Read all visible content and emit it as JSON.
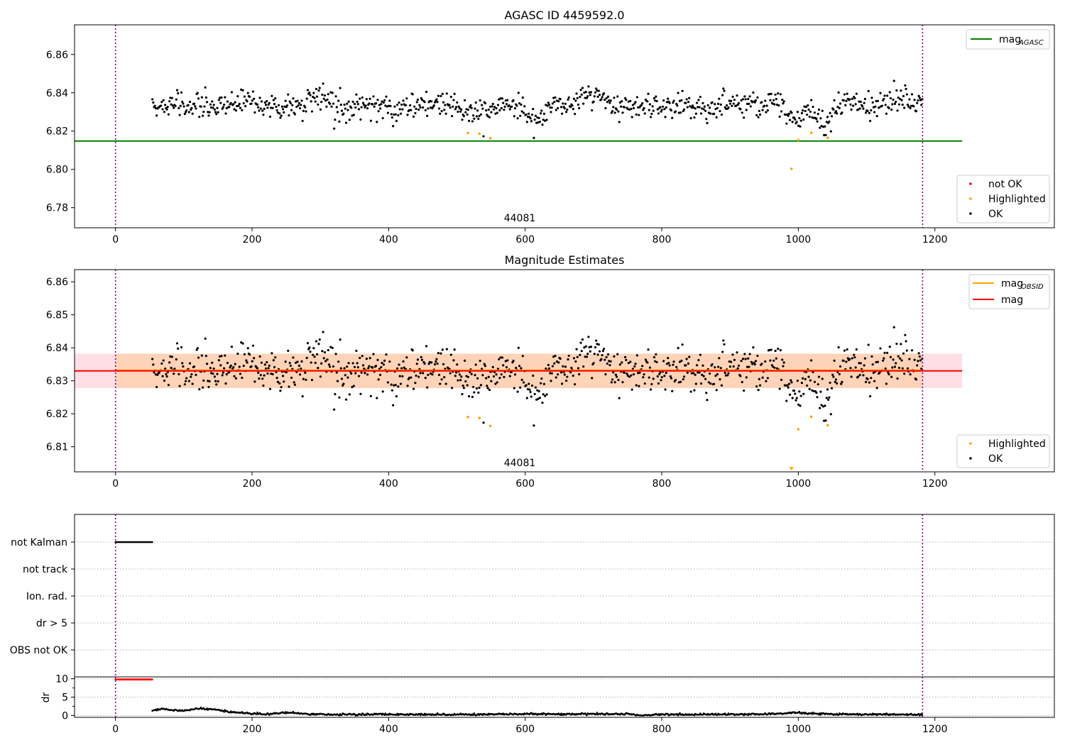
{
  "chart_data": [
    {
      "type": "scatter",
      "title": "AGASC ID 4459592.0",
      "xlim": [
        -60,
        1375
      ],
      "ylim": [
        6.7695,
        6.8755
      ],
      "xticks": [
        0,
        200,
        400,
        600,
        800,
        1000,
        1200
      ],
      "yticks": [
        6.78,
        6.8,
        6.82,
        6.84,
        6.86
      ],
      "vlines": [
        0,
        1182
      ],
      "annotation": {
        "text": "44081",
        "x": 592
      },
      "hlines": [
        {
          "name": "magAGASC",
          "y": 6.8148,
          "x_range": [
            -60,
            1240
          ],
          "color": "#008000"
        }
      ],
      "series": [
        {
          "name": "not OK",
          "color": "#ff0000",
          "points": []
        },
        {
          "name": "Highlighted",
          "color": "#ffa500",
          "points": [
            [
              516,
              6.819
            ],
            [
              533,
              6.8187
            ],
            [
              549,
              6.8163
            ],
            [
              990,
              6.8003
            ],
            [
              1000,
              6.8153
            ],
            [
              1019,
              6.8191
            ],
            [
              1043,
              6.8165
            ]
          ]
        },
        {
          "name": "OK",
          "color": "#000000",
          "points": []
        }
      ],
      "legend_lines": {
        "label": "mag",
        "subscript": "AGASC",
        "placement": "upper right"
      },
      "legend_points": {
        "labels": [
          "not OK",
          "Highlighted",
          "OK"
        ],
        "placement": "lower right"
      },
      "grid": false
    },
    {
      "type": "scatter",
      "title": "Magnitude Estimates",
      "xlim": [
        -60,
        1375
      ],
      "ylim": [
        6.8024,
        6.8637
      ],
      "xticks": [
        0,
        200,
        400,
        600,
        800,
        1000,
        1200
      ],
      "yticks": [
        6.81,
        6.82,
        6.83,
        6.84,
        6.85,
        6.86
      ],
      "vlines": [
        0,
        1182
      ],
      "annotation": {
        "text": "44081",
        "x": 592
      },
      "bands": [
        {
          "y_range": [
            6.8278,
            6.8382
          ],
          "x_range": [
            -60,
            1240
          ],
          "color": "#ffc0cb",
          "opacity": 0.5
        },
        {
          "y_range": [
            6.8278,
            6.8382
          ],
          "x_range": [
            0,
            1182
          ],
          "color": "#ffa500",
          "opacity": 0.2
        }
      ],
      "hlines": [
        {
          "name": "magOBSID",
          "y": 6.8332,
          "x_range": [
            0,
            1182
          ],
          "color": "#ffa500"
        },
        {
          "name": "mag",
          "y": 6.833,
          "x_range": [
            -60,
            1240
          ],
          "color": "#ff0000"
        }
      ],
      "series": [
        {
          "name": "Highlighted",
          "color": "#ffa500",
          "points": [
            [
              516,
              6.819
            ],
            [
              533,
              6.8187
            ],
            [
              549,
              6.8163
            ],
            [
              1000,
              6.8153
            ],
            [
              1019,
              6.8191
            ],
            [
              1043,
              6.8165
            ]
          ]
        },
        {
          "name": "OK",
          "color": "#000000",
          "points": []
        }
      ],
      "clipped_marker": {
        "x": 990,
        "color": "#ffa500"
      },
      "legend_lines": {
        "items": [
          {
            "label": "mag",
            "subscript": "OBSID",
            "color": "#ffa500"
          },
          {
            "label": "mag",
            "color": "#ff0000"
          }
        ],
        "placement": "upper right"
      },
      "legend_points": {
        "labels": [
          "Highlighted",
          "OK"
        ],
        "placement": "lower right"
      },
      "grid": false
    },
    {
      "type": "scatter",
      "title": "",
      "xlim": [
        -60,
        1375
      ],
      "categories": [
        "not Kalman",
        "not track",
        "Ion. rad.",
        "dr > 5",
        "OBS not OK"
      ],
      "flag_segments": [
        {
          "category": "not Kalman",
          "x_range": [
            0,
            54
          ]
        }
      ],
      "vlines": [
        0,
        1182
      ],
      "grid": true
    },
    {
      "type": "line",
      "title": "",
      "ylabel": "dr",
      "xlim": [
        -60,
        1375
      ],
      "ylim": [
        -0.5,
        10.5
      ],
      "xticks": [
        0,
        200,
        400,
        600,
        800,
        1000,
        1200
      ],
      "yticks": [
        0,
        5,
        10
      ],
      "vlines": [
        0,
        1182
      ],
      "red_segment": {
        "x_range": [
          0,
          54
        ],
        "y": 9.8
      },
      "series": [
        {
          "name": "",
          "color": "#000000",
          "x": [
            54,
            60,
            70,
            80,
            90,
            100,
            110,
            120,
            130,
            140,
            150,
            160,
            170,
            180,
            190,
            200,
            220,
            240,
            260,
            280,
            300,
            350,
            400,
            450,
            500,
            550,
            600,
            650,
            700,
            750,
            770,
            800,
            850,
            900,
            950,
            980,
            1000,
            1020,
            1050,
            1100,
            1150,
            1182
          ],
          "values": [
            1.2,
            1.6,
            1.8,
            1.5,
            1.3,
            1.4,
            1.6,
            1.9,
            1.8,
            1.7,
            1.5,
            1.2,
            0.9,
            0.8,
            0.7,
            0.5,
            0.4,
            0.6,
            0.8,
            0.3,
            0.3,
            0.3,
            0.3,
            0.3,
            0.3,
            0.3,
            0.4,
            0.4,
            0.4,
            0.4,
            0.0,
            0.3,
            0.3,
            0.3,
            0.4,
            0.6,
            0.8,
            0.5,
            0.4,
            0.3,
            0.3,
            0.2
          ]
        }
      ],
      "grid": true
    }
  ],
  "text": {
    "title1": "AGASC ID 4459592.0",
    "title2": "Magnitude Estimates",
    "obsid1": "44081",
    "obsid2": "44081",
    "legend1_lines_main": "mag",
    "legend1_lines_sub": "AGASC",
    "legend1_p0": "not OK",
    "legend1_p1": "Highlighted",
    "legend1_p2": "OK",
    "legend2_l0_main": "mag",
    "legend2_l0_sub": "OBSID",
    "legend2_l1": "mag",
    "legend2_p0": "Highlighted",
    "legend2_p1": "OK",
    "cat0": "not Kalman",
    "cat1": "not track",
    "cat2": "Ion. rad.",
    "cat3": "dr > 5",
    "cat4": "OBS not OK",
    "dr_label": "dr"
  }
}
